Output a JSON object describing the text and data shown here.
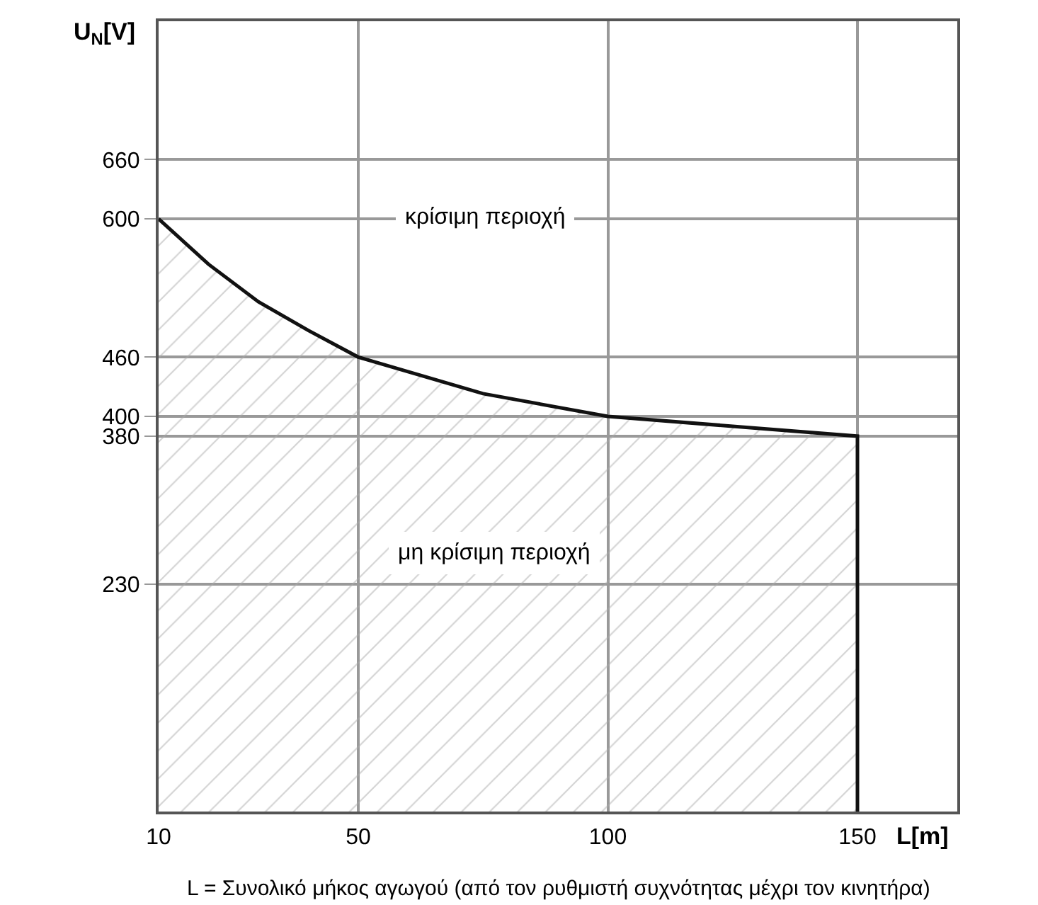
{
  "chart_data": {
    "type": "area",
    "xlabel": "L[m]",
    "ylabel": "U$_{N}$[V]",
    "x": [
      10,
      20,
      30,
      40,
      50,
      75,
      100,
      125,
      150,
      150
    ],
    "series": [
      {
        "color": "#111111",
        "values": [
          600,
          554,
          516,
          487,
          460,
          423,
          400,
          390,
          380,
          0
        ]
      }
    ],
    "xlim": [
      10,
      170
    ],
    "xticks": [
      10,
      50,
      100,
      150
    ],
    "ylim": [
      0,
      800
    ],
    "yticks": [
      230,
      380,
      400,
      460,
      600,
      660
    ],
    "grid": true,
    "marker": "none",
    "line_style": "solid",
    "annotations": [
      "κρίσιμη περιοχή",
      "μη κρίσιμη περιοχή",
      "L = Συνολικό μήκος αγωγού (από τον ρυθμιστή συχνότητας μέχρι τον κινητήρα)"
    ]
  }
}
